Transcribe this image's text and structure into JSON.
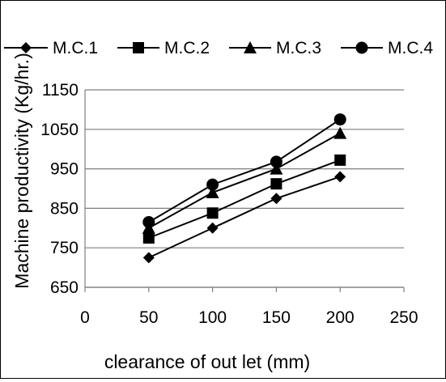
{
  "chart_data": {
    "type": "line",
    "x": [
      50,
      100,
      150,
      200
    ],
    "series": [
      {
        "name": "M.C.1",
        "marker": "diamond",
        "values": [
          725,
          800,
          875,
          930
        ]
      },
      {
        "name": "M.C.2",
        "marker": "square",
        "values": [
          775,
          838,
          912,
          972
        ]
      },
      {
        "name": "M.C.3",
        "marker": "triangle",
        "values": [
          800,
          890,
          950,
          1040
        ]
      },
      {
        "name": "M.C.4",
        "marker": "circle",
        "values": [
          815,
          910,
          968,
          1075
        ]
      }
    ],
    "xlabel": "clearance of out let (mm)",
    "ylabel": "Machine productivity (Kg/hr.)",
    "xlim": [
      0,
      250
    ],
    "ylim": [
      650,
      1150
    ],
    "xticks": [
      0,
      50,
      100,
      150,
      200,
      250
    ],
    "yticks": [
      650,
      750,
      850,
      950,
      1050,
      1150
    ],
    "grid": "horizontal",
    "legend_position": "top",
    "colors": {
      "line": "#000000",
      "grid": "#7f7f7f",
      "axis": "#7f7f7f"
    }
  }
}
